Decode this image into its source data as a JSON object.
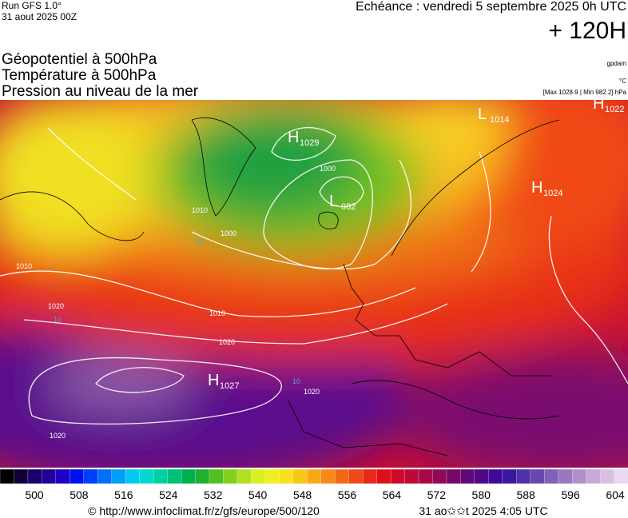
{
  "header": {
    "run": "Run GFS 1.0°",
    "date": "31 aout 2025 00Z",
    "echeance": "Echéance : vendredi 5 septembre 2025 0h UTC",
    "lead": "+ 120H"
  },
  "titles": [
    "Géopotentiel à 500hPa",
    "Température à 500hPa",
    "Pression au niveau de la mer"
  ],
  "units": {
    "geopotential": "gpdam",
    "temperature": "°C",
    "pressure": "[Max 1028.9 | Min 982.2] hPa"
  },
  "centers": [
    {
      "type": "H",
      "value": "1029"
    },
    {
      "type": "L",
      "value": "982"
    },
    {
      "type": "H",
      "value": "1027"
    },
    {
      "type": "H",
      "value": "1024"
    },
    {
      "type": "L",
      "value": "1014"
    },
    {
      "type": "H",
      "value": "1022"
    }
  ],
  "contour_labels": [
    "1000",
    "1010",
    "1020",
    "1020",
    "1020",
    "1010",
    "1020",
    "1010",
    "1000",
    "20",
    "10",
    "10"
  ],
  "colorbar": {
    "labels": [
      "500",
      "508",
      "516",
      "524",
      "532",
      "540",
      "548",
      "556",
      "564",
      "572",
      "580",
      "588",
      "596",
      "604"
    ]
  },
  "footer": {
    "credit": "© http://www.infoclimat.fr/z/gfs/europe/500/120",
    "time": "31 ao✩✩t 2025  4:05 UTC"
  }
}
